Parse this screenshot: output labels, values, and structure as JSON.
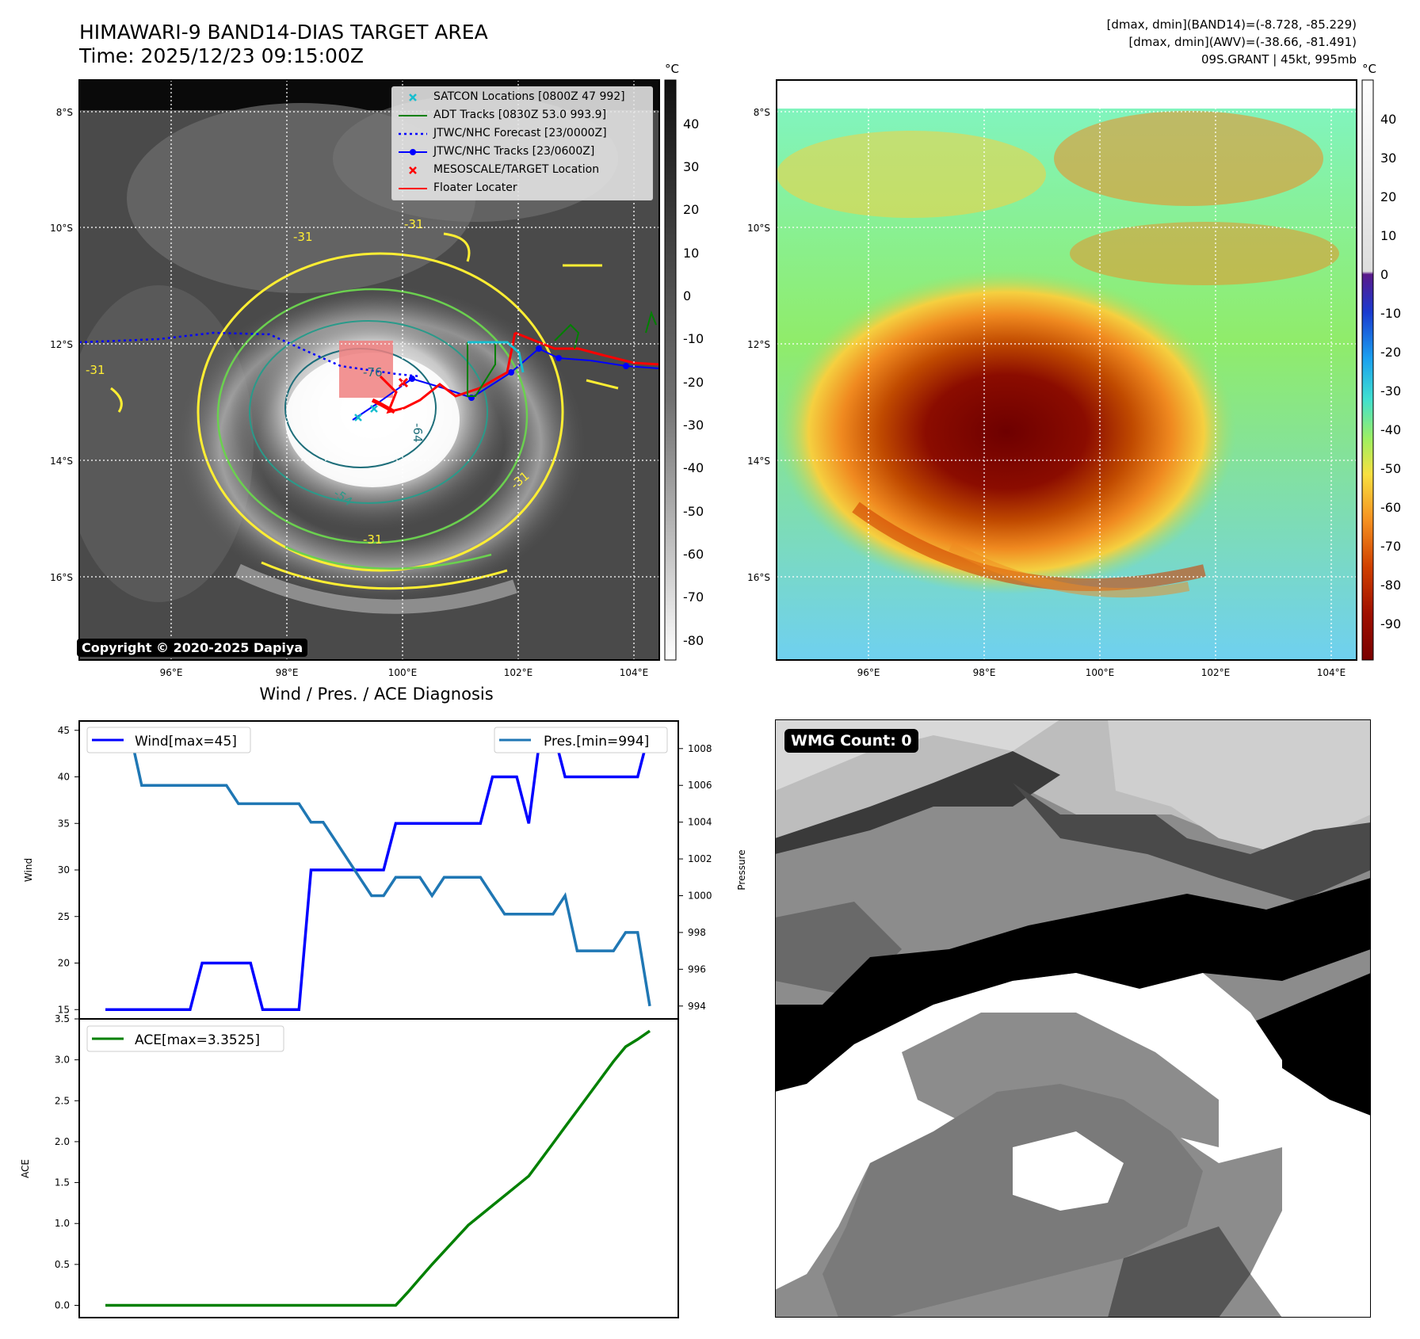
{
  "header": {
    "title": "HIMAWARI-9 BAND14-DIAS TARGET AREA",
    "time": "Time: 2025/12/23 09:15:00Z",
    "band14_range": "[dmax, dmin](BAND14)=(-8.728, -85.229)",
    "awv_range": "[dmax, dmin](AWV)=(-38.66, -81.491)",
    "storm": "09S.GRANT | 45kt, 995mb"
  },
  "map": {
    "lat_labels": [
      "8°S",
      "10°S",
      "12°S",
      "14°S",
      "16°S"
    ],
    "lon_labels": [
      "96°E",
      "98°E",
      "100°E",
      "102°E",
      "104°E"
    ],
    "contour_labels": [
      "-31",
      "-31",
      "-31",
      "-31",
      "-54",
      "-64",
      "-76",
      "-31"
    ],
    "copyright": "Copyright © 2020-2025 Dapiya",
    "legend": [
      {
        "label": "SATCON Locations [0800Z 47 992]",
        "symbol": "x",
        "color": "#17becf"
      },
      {
        "label": "ADT Tracks [0830Z 53.0 993.9]",
        "symbol": "line",
        "color": "#008000"
      },
      {
        "label": "JTWC/NHC Forecast [23/0000Z]",
        "symbol": "dotted",
        "color": "#0000ff"
      },
      {
        "label": "JTWC/NHC Tracks [23/0600Z]",
        "symbol": "line-dot",
        "color": "#0000ff"
      },
      {
        "label": "MESOSCALE/TARGET Location",
        "symbol": "x",
        "color": "#ff0000"
      },
      {
        "label": "Floater Locater",
        "symbol": "line",
        "color": "#ff0000"
      }
    ]
  },
  "colorbars": {
    "unit": "°C",
    "gray_ticks": [
      "40",
      "30",
      "20",
      "10",
      "0",
      "-10",
      "-20",
      "-30",
      "-40",
      "-50",
      "-60",
      "-70",
      "-80"
    ],
    "color_ticks": [
      "40",
      "30",
      "20",
      "10",
      "0",
      "-10",
      "-20",
      "-30",
      "-40",
      "-50",
      "-60",
      "-70",
      "-80",
      "-90"
    ]
  },
  "diagnosis": {
    "title": "Wind / Pres. / ACE Diagnosis",
    "wmg": "WMG Count: 0"
  },
  "colors": {
    "wind": "#0000ff",
    "pressure": "#1f77b4",
    "ace": "#008000",
    "contour_yellow": "#ffee33",
    "contour_green": "#6bd04f",
    "contour_teal": "#2a9a8a"
  },
  "chart_data": [
    {
      "type": "line",
      "name": "wind-pressure",
      "x": [
        0,
        1,
        2,
        3,
        4,
        5,
        6,
        7,
        8,
        9,
        10,
        11,
        12,
        13,
        14,
        15,
        16,
        17,
        18,
        19,
        20,
        21,
        22,
        23,
        24,
        25,
        26,
        27,
        28,
        29,
        30,
        31,
        32,
        33,
        34,
        35,
        36,
        37,
        38,
        39,
        40,
        41,
        42,
        43,
        44,
        45
      ],
      "series": [
        {
          "name": "Wind",
          "legend": "Wind[max=45]",
          "axis": "left",
          "values": [
            15,
            15,
            15,
            15,
            15,
            15,
            15,
            15,
            20,
            20,
            20,
            20,
            20,
            15,
            15,
            15,
            15,
            30,
            30,
            30,
            30,
            30,
            30,
            30,
            35,
            35,
            35,
            35,
            35,
            35,
            35,
            35,
            40,
            40,
            40,
            35,
            45,
            45,
            40,
            40,
            40,
            40,
            40,
            40,
            40,
            45
          ]
        },
        {
          "name": "Pres",
          "legend": "Pres.[min=994]",
          "axis": "right",
          "values": [
            1009,
            1009,
            1009,
            1006,
            1006,
            1006,
            1006,
            1006,
            1006,
            1006,
            1006,
            1005,
            1005,
            1005,
            1005,
            1005,
            1005,
            1004,
            1004,
            1003,
            1002,
            1001,
            1000,
            1000,
            1001,
            1001,
            1001,
            1000,
            1001,
            1001,
            1001,
            1001,
            1000,
            999,
            999,
            999,
            999,
            999,
            1000,
            997,
            997,
            997,
            997,
            998,
            998,
            994
          ]
        },
        {
          "name": "ACE",
          "legend": "ACE[max=3.3525]",
          "axis": "ace",
          "values": [
            0,
            0,
            0,
            0,
            0,
            0,
            0,
            0,
            0,
            0,
            0,
            0,
            0,
            0,
            0,
            0,
            0,
            0,
            0,
            0,
            0,
            0,
            0,
            0,
            0,
            0.16,
            0.33,
            0.5,
            0.66,
            0.82,
            0.98,
            1.1,
            1.22,
            1.34,
            1.46,
            1.58,
            1.78,
            1.98,
            2.18,
            2.38,
            2.58,
            2.78,
            2.98,
            3.16,
            3.25,
            3.3525
          ]
        }
      ],
      "ylabel_left": "Wind",
      "ylim_left": [
        14,
        46
      ],
      "ticks_left": [
        15,
        20,
        25,
        30,
        35,
        40,
        45
      ],
      "ylabel_right": "Pressure",
      "ylim_right": [
        993.3,
        1009.5
      ],
      "ticks_right": [
        994,
        996,
        998,
        1000,
        1002,
        1004,
        1006,
        1008
      ],
      "ylabel_ace": "ACE",
      "ylim_ace": [
        -0.15,
        3.5
      ],
      "ticks_ace": [
        0.0,
        0.5,
        1.0,
        1.5,
        2.0,
        2.5,
        3.0,
        3.5
      ]
    }
  ]
}
